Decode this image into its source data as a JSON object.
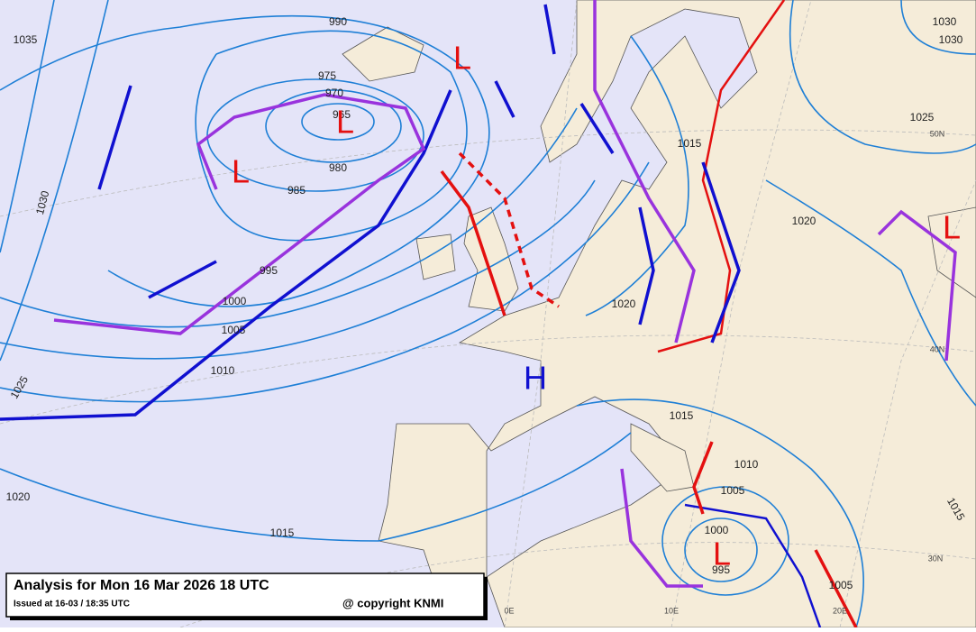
{
  "title": {
    "heading": "Analysis for Mon 16 Mar 2026 18 UTC",
    "issued": "Issued at 16-03 / 18:35 UTC",
    "copyright": "@ copyright KNMI"
  },
  "isobar_labels": [
    "990",
    "975",
    "970",
    "965",
    "980",
    "985",
    "995",
    "1000",
    "1005",
    "1010",
    "1025",
    "1030",
    "1035",
    "1020",
    "1015",
    "1015",
    "1020",
    "1025",
    "1030",
    "1030",
    "1020",
    "1015",
    "1010",
    "1005",
    "1000",
    "995",
    "1005",
    "1015"
  ],
  "pressure_centers": [
    "L",
    "L",
    "L",
    "L",
    "L",
    "H"
  ],
  "graticule_labels": [
    "50N",
    "40N",
    "30N",
    "0E",
    "10E",
    "20E"
  ]
}
